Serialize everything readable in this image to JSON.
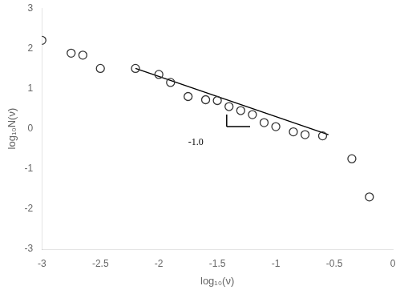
{
  "chart_data": {
    "type": "scatter",
    "xlabel": "log₁₀(ν)",
    "ylabel": "log₁₀N(ν)",
    "x": [
      -3.0,
      -2.75,
      -2.65,
      -2.5,
      -2.2,
      -2.0,
      -1.9,
      -1.75,
      -1.6,
      -1.5,
      -1.4,
      -1.3,
      -1.2,
      -1.1,
      -1.0,
      -0.85,
      -0.75,
      -0.6,
      -0.35,
      -0.2
    ],
    "values": [
      2.2,
      1.88,
      1.83,
      1.5,
      1.5,
      1.35,
      1.15,
      0.8,
      0.72,
      0.7,
      0.55,
      0.45,
      0.35,
      0.15,
      0.05,
      -0.08,
      -0.15,
      -0.18,
      -0.75,
      -1.7
    ],
    "color": "#333333",
    "marker": "circle",
    "lines": [
      {
        "x": [
          -2.2,
          -0.55
        ],
        "values": [
          1.5,
          -0.15
        ],
        "color": "#000000"
      },
      {
        "x": [
          -1.42,
          -1.42
        ],
        "values": [
          0.35,
          0.05
        ],
        "color": "#000000"
      },
      {
        "x": [
          -1.42,
          -1.22
        ],
        "values": [
          0.05,
          0.05
        ],
        "color": "#000000"
      }
    ],
    "annotations": [
      {
        "text": "-1.0",
        "x": -1.62,
        "y": -0.22,
        "color": "#000000"
      }
    ],
    "xlim": [
      -3,
      0
    ],
    "ylim": [
      -3,
      3
    ],
    "xticks": [
      -3,
      -2.5,
      -2,
      -1.5,
      -1,
      -0.5,
      0
    ],
    "yticks": [
      -3,
      -2,
      -1,
      0,
      1,
      2,
      3
    ],
    "grid": false
  }
}
